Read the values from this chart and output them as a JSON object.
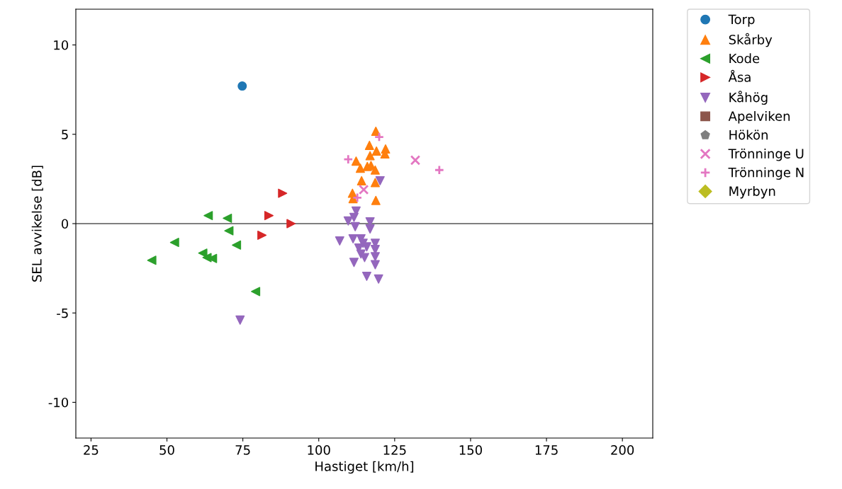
{
  "chart_data": {
    "type": "scatter",
    "xlabel": "Hastiget [km/h]",
    "ylabel": "SEL avvikelse [dB]",
    "xlim": [
      20,
      210
    ],
    "ylim": [
      -12,
      12
    ],
    "xticks": [
      25,
      50,
      75,
      100,
      125,
      150,
      175,
      200
    ],
    "yticks": [
      -10,
      -5,
      0,
      5,
      10
    ],
    "grid": false,
    "legend": "top right",
    "ref_lines": [
      {
        "axis": "y",
        "value": 0,
        "color": "#000000",
        "line_style": "solid"
      }
    ],
    "series": [
      {
        "name": "Torp",
        "color": "#1f77b4",
        "marker": "circle",
        "x": [
          74.8
        ],
        "values": [
          7.7
        ]
      },
      {
        "name": "Skårby",
        "color": "#ff7f0e",
        "marker": "triangle",
        "x": [
          118.8,
          116.7,
          119.0,
          122.0,
          121.8,
          116.9,
          112.3,
          113.7,
          116.0,
          117.2,
          118.6,
          114.1,
          118.6,
          111.1,
          111.3,
          118.8
        ],
        "values": [
          5.17,
          4.38,
          4.06,
          4.18,
          3.9,
          3.8,
          3.5,
          3.1,
          3.2,
          3.25,
          3.0,
          2.4,
          2.3,
          1.7,
          1.4,
          1.3
        ]
      },
      {
        "name": "Kode",
        "color": "#2ca02c",
        "marker": "triangle_left",
        "x": [
          45.0,
          52.5,
          63.6,
          69.9,
          70.4,
          61.8,
          63.2,
          65.0,
          72.9,
          79.2
        ],
        "values": [
          -2.05,
          -1.05,
          0.45,
          0.3,
          -0.4,
          -1.65,
          -1.9,
          -1.95,
          -1.2,
          -3.8
        ]
      },
      {
        "name": "Åsa",
        "color": "#d62728",
        "marker": "triangle_right",
        "x": [
          88.1,
          83.6,
          90.9,
          81.3
        ],
        "values": [
          1.7,
          0.45,
          0.0,
          -0.65
        ]
      },
      {
        "name": "Kåhög",
        "color": "#9467bd",
        "marker": "triangle_down",
        "x": [
          74.1,
          120.2,
          112.3,
          111.6,
          109.7,
          112.0,
          116.9,
          116.9,
          106.9,
          111.3,
          113.9,
          114.6,
          118.6,
          113.2,
          115.8,
          118.6,
          113.9,
          118.6,
          115.1,
          111.6,
          118.6,
          115.8,
          119.7
        ],
        "values": [
          -5.4,
          2.4,
          0.7,
          0.35,
          0.15,
          -0.17,
          0.1,
          -0.3,
          -0.97,
          -0.85,
          -0.85,
          -1.1,
          -1.1,
          -1.37,
          -1.3,
          -1.45,
          -1.7,
          -1.85,
          -1.9,
          -2.17,
          -2.3,
          -2.95,
          -3.1
        ]
      },
      {
        "name": "Apelviken",
        "color": "#8c564b",
        "marker": "square"
      },
      {
        "name": "Hökön",
        "color": "#7f7f7f",
        "marker": "pentagon"
      },
      {
        "name": "Trönninge U",
        "color": "#e377c2",
        "marker": "cross",
        "x": [
          114.8,
          131.8
        ],
        "values": [
          1.9,
          3.55
        ]
      },
      {
        "name": "Trönninge N",
        "color": "#e377c2",
        "marker": "plus",
        "x": [
          119.9,
          109.7,
          112.7,
          139.7
        ],
        "values": [
          4.85,
          3.6,
          1.45,
          3.0
        ]
      },
      {
        "name": "Myrbyn",
        "color": "#bcbd22",
        "marker": "diamond"
      }
    ]
  }
}
